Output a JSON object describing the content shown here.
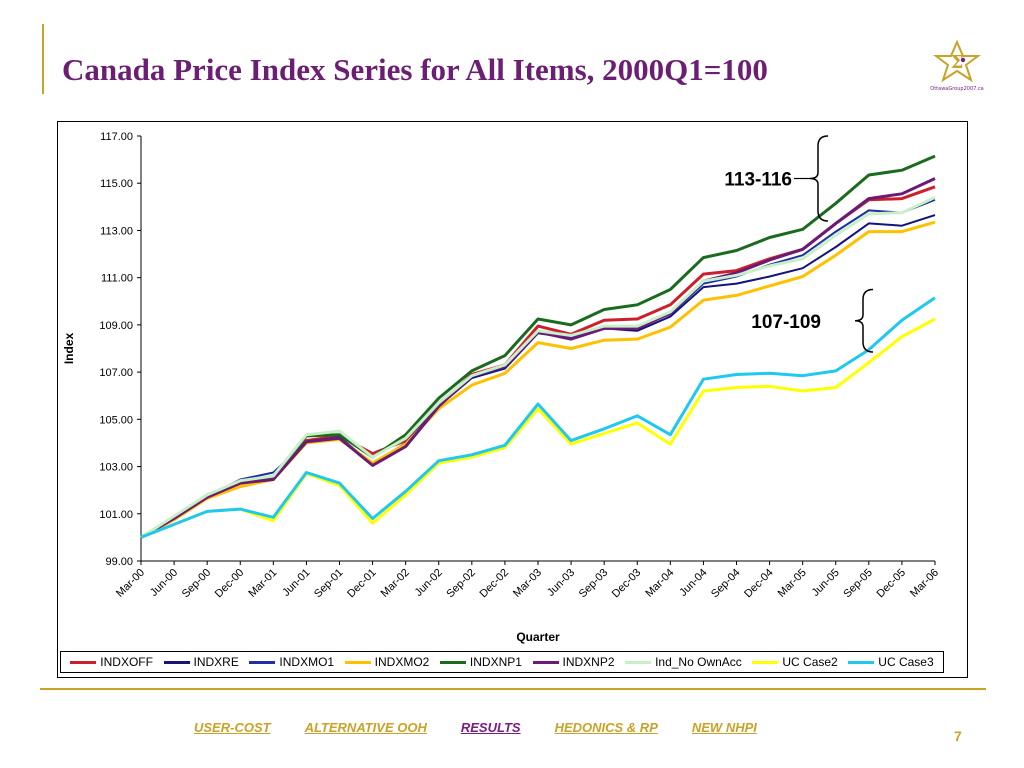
{
  "slide": {
    "title": "Canada Price Index Series for All Items, 2000Q1=100",
    "logo_text": "OttawaGroup2007.ca",
    "page_number": "7"
  },
  "nav": {
    "items": [
      {
        "label": "USER-COST",
        "active": false
      },
      {
        "label": "ALTERNATIVE OOH",
        "active": false
      },
      {
        "label": "RESULTS",
        "active": true
      },
      {
        "label": "HEDONICS & RP",
        "active": false
      },
      {
        "label": "NEW NHPI",
        "active": false
      }
    ]
  },
  "colors": {
    "title": "#6b1e73",
    "accent": "#c9a227",
    "nav_active": "#7a1e82"
  },
  "chart_data": {
    "type": "line",
    "xlabel": "Quarter",
    "ylabel": "Index",
    "ylim": [
      99,
      117
    ],
    "yticks": [
      "99.00",
      "101.00",
      "103.00",
      "105.00",
      "107.00",
      "109.00",
      "111.00",
      "113.00",
      "115.00",
      "117.00"
    ],
    "categories": [
      "Mar-00",
      "Jun-00",
      "Sep-00",
      "Dec-00",
      "Mar-01",
      "Jun-01",
      "Sep-01",
      "Dec-01",
      "Mar-02",
      "Jun-02",
      "Sep-02",
      "Dec-02",
      "Mar-03",
      "Jun-03",
      "Sep-03",
      "Dec-03",
      "Mar-04",
      "Jun-04",
      "Sep-04",
      "Dec-04",
      "Mar-05",
      "Jun-05",
      "Sep-05",
      "Dec-05",
      "Mar-06"
    ],
    "legend_position": "bottom",
    "series": [
      {
        "name": "INDXOFF",
        "color": "#cc1f2b",
        "values": [
          100.0,
          100.85,
          101.75,
          102.3,
          102.5,
          104.1,
          104.3,
          103.55,
          104.1,
          105.6,
          106.9,
          107.3,
          108.95,
          108.6,
          109.2,
          109.25,
          109.85,
          111.15,
          111.3,
          111.8,
          112.2,
          113.3,
          114.3,
          114.35,
          114.85
        ]
      },
      {
        "name": "INDXRE",
        "color": "#14147a",
        "values": [
          100.0,
          100.8,
          101.7,
          102.3,
          102.45,
          104.05,
          104.2,
          103.1,
          103.95,
          105.55,
          106.75,
          107.15,
          108.65,
          108.45,
          108.85,
          108.75,
          109.35,
          110.6,
          110.75,
          111.05,
          111.4,
          112.3,
          113.3,
          113.2,
          113.65
        ]
      },
      {
        "name": "INDXMO1",
        "color": "#1f2f9f",
        "values": [
          100.0,
          100.8,
          101.75,
          102.45,
          102.75,
          104.05,
          104.25,
          103.1,
          104.0,
          105.55,
          106.8,
          107.2,
          108.7,
          108.5,
          108.85,
          108.95,
          109.45,
          110.75,
          111.05,
          111.55,
          111.95,
          112.95,
          113.85,
          113.75,
          114.3
        ]
      },
      {
        "name": "INDXMO2",
        "color": "#ffc000",
        "values": [
          100.0,
          100.75,
          101.65,
          102.15,
          102.45,
          104.0,
          104.15,
          103.15,
          103.95,
          105.45,
          106.45,
          106.95,
          108.25,
          108.0,
          108.35,
          108.4,
          108.9,
          110.05,
          110.25,
          110.65,
          111.05,
          111.95,
          112.95,
          112.95,
          113.35
        ]
      },
      {
        "name": "INDXNP1",
        "color": "#1a6b1e",
        "values": [
          100.0,
          100.85,
          101.8,
          102.35,
          102.5,
          104.3,
          104.35,
          103.4,
          104.35,
          105.9,
          107.05,
          107.7,
          109.25,
          109.0,
          109.65,
          109.85,
          110.5,
          111.85,
          112.15,
          112.7,
          113.05,
          114.15,
          115.35,
          115.55,
          116.15
        ]
      },
      {
        "name": "INDXNP2",
        "color": "#6b1a75",
        "values": [
          100.0,
          100.8,
          101.7,
          102.3,
          102.45,
          104.05,
          104.2,
          103.05,
          103.85,
          105.55,
          106.85,
          107.25,
          108.7,
          108.4,
          108.85,
          108.85,
          109.5,
          110.85,
          111.2,
          111.75,
          112.2,
          113.3,
          114.35,
          114.55,
          115.2
        ]
      },
      {
        "name": "Ind_No OwnAcc",
        "color": "#c8f0c8",
        "values": [
          100.0,
          100.9,
          101.8,
          102.4,
          102.6,
          104.35,
          104.5,
          103.4,
          104.2,
          105.7,
          106.85,
          107.3,
          108.75,
          108.55,
          108.95,
          108.95,
          109.55,
          110.85,
          111.1,
          111.5,
          111.8,
          112.8,
          113.7,
          113.75,
          114.4
        ]
      },
      {
        "name": "UC Case2",
        "color": "#ffff00",
        "values": [
          100.0,
          100.55,
          101.1,
          101.2,
          100.7,
          102.7,
          102.2,
          100.6,
          101.8,
          103.15,
          103.4,
          103.8,
          105.45,
          103.95,
          104.4,
          104.85,
          103.95,
          106.2,
          106.35,
          106.4,
          106.2,
          106.35,
          107.4,
          108.5,
          109.25
        ]
      },
      {
        "name": "UC Case3",
        "color": "#1ec8f0",
        "values": [
          100.0,
          100.55,
          101.1,
          101.2,
          100.85,
          102.75,
          102.3,
          100.8,
          101.95,
          103.25,
          103.5,
          103.9,
          105.65,
          104.1,
          104.6,
          105.15,
          104.35,
          106.7,
          106.9,
          106.95,
          106.85,
          107.05,
          107.95,
          109.2,
          110.15
        ]
      }
    ],
    "annotations": [
      {
        "label": "113-116",
        "range": [
          113.4,
          117.0
        ]
      },
      {
        "label": "107-109",
        "range": [
          107.85,
          110.5
        ]
      }
    ]
  }
}
